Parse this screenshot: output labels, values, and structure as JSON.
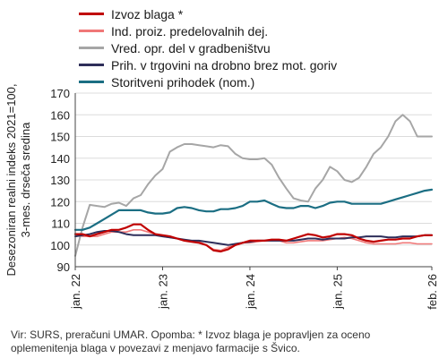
{
  "chart_data": {
    "type": "line",
    "ylabel_lines": [
      "Desezoniran realni indeks 2021=100,",
      "3-mes. drseča sredina"
    ],
    "ylim": [
      90,
      170
    ],
    "yticks": [
      90,
      100,
      110,
      120,
      130,
      140,
      150,
      160,
      170
    ],
    "grid": "horizontal",
    "legend_position": "top",
    "x_start": "2022-01",
    "x_end": "2026-02",
    "xtick_labels": [
      {
        "date": "2022-01",
        "label": "jan. 22"
      },
      {
        "date": "2023-01",
        "label": "jan. 23"
      },
      {
        "date": "2024-01",
        "label": "jan. 24"
      },
      {
        "date": "2025-01",
        "label": "jan. 25"
      },
      {
        "date": "2026-02",
        "label": "feb. 26"
      }
    ],
    "x": [
      "2022-01",
      "2022-02",
      "2022-03",
      "2022-04",
      "2022-05",
      "2022-06",
      "2022-07",
      "2022-08",
      "2022-09",
      "2022-10",
      "2022-11",
      "2022-12",
      "2023-01",
      "2023-02",
      "2023-03",
      "2023-04",
      "2023-05",
      "2023-06",
      "2023-07",
      "2023-08",
      "2023-09",
      "2023-10",
      "2023-11",
      "2023-12",
      "2024-01",
      "2024-02",
      "2024-03",
      "2024-04",
      "2024-05",
      "2024-06",
      "2024-07",
      "2024-08",
      "2024-09",
      "2024-10",
      "2024-11",
      "2024-12",
      "2025-01",
      "2025-02",
      "2025-03",
      "2025-04",
      "2025-05",
      "2025-06",
      "2025-07",
      "2025-08",
      "2025-09",
      "2025-10",
      "2025-11",
      "2025-12",
      "2026-01",
      "2026-02"
    ],
    "series": [
      {
        "name": "Izvoz blaga *",
        "color": "#c00000",
        "width": 2.2,
        "values": [
          105,
          105,
          104,
          105,
          106,
          107,
          107,
          108,
          109.5,
          109.5,
          107,
          105,
          104.5,
          104,
          103,
          102,
          101.5,
          101,
          100,
          97.5,
          97,
          98,
          100,
          101,
          102,
          102,
          102,
          102.5,
          102.5,
          102,
          103,
          104,
          105,
          104.5,
          103.5,
          104,
          105,
          105,
          104.5,
          103,
          102,
          101.5,
          102,
          102.5,
          102.5,
          103,
          103,
          104,
          104.5,
          104.5
        ]
      },
      {
        "name": "Ind. proiz. predelovalnih dej.",
        "color": "#f07878",
        "width": 1.6,
        "values": [
          105,
          104,
          104,
          104,
          105,
          106,
          106,
          106,
          107,
          107,
          106,
          105,
          104,
          103.5,
          103,
          102,
          102,
          101.5,
          100,
          98,
          97.5,
          99,
          100,
          101,
          101,
          101.5,
          102,
          102,
          102,
          101,
          101,
          101.5,
          102,
          102,
          102,
          102.5,
          103,
          103.5,
          103,
          102,
          101,
          100.5,
          100.5,
          100.5,
          100.5,
          101,
          101,
          100.5,
          100.5,
          100.5
        ]
      },
      {
        "name": "Vred. opr. del v gradbeništvu",
        "color": "#a6a6a6",
        "width": 2.0,
        "values": [
          95,
          108,
          118.5,
          118,
          117.5,
          119,
          119.5,
          118,
          121.5,
          123,
          128,
          132,
          135,
          143,
          145,
          146.5,
          146.5,
          146,
          145.5,
          145,
          146,
          145.5,
          142,
          140,
          139.5,
          139.5,
          140,
          137,
          131,
          126,
          121.5,
          120.5,
          120,
          126,
          130,
          136,
          134,
          130,
          129,
          131,
          136,
          142,
          145,
          150,
          157,
          160,
          157,
          150,
          150,
          150
        ]
      },
      {
        "name": "Prih. v trgovini na drobno brez mot. goriv",
        "color": "#2e2e5a",
        "width": 2.0,
        "values": [
          104,
          104.5,
          105,
          106,
          106.5,
          106.5,
          106,
          105,
          104.5,
          104.5,
          104.5,
          104.5,
          104,
          103.5,
          103,
          102.5,
          102,
          102,
          101.5,
          101,
          100.5,
          100,
          100.5,
          101,
          101.5,
          102,
          102,
          102,
          102,
          102,
          102,
          102.5,
          103,
          103,
          102.5,
          103,
          103,
          103,
          103.5,
          103.5,
          104,
          104,
          104,
          103.5,
          103.5,
          104,
          104,
          104,
          104.5,
          104.5
        ]
      },
      {
        "name": "Storitveni prihodek (nom.)",
        "color": "#1b6e83",
        "width": 2.2,
        "values": [
          107,
          107,
          108,
          110,
          112,
          114,
          116,
          116,
          116,
          116,
          115,
          114.5,
          114.5,
          115,
          117,
          117.5,
          117,
          116,
          115.5,
          115.5,
          116.5,
          116.5,
          117,
          118,
          120,
          120,
          120.5,
          119,
          117.5,
          117,
          117,
          118,
          118,
          117,
          118,
          119.5,
          120,
          120,
          119,
          119,
          119,
          119,
          119,
          120,
          121,
          122,
          123,
          124,
          125,
          125.5
        ]
      }
    ]
  },
  "note_text": "Vir: SURS, preračuni UMAR. Opomba: * Izvoz blaga je popravljen za oceno oplemenitenja blaga v povezavi z menjavo farmacije s Švico."
}
